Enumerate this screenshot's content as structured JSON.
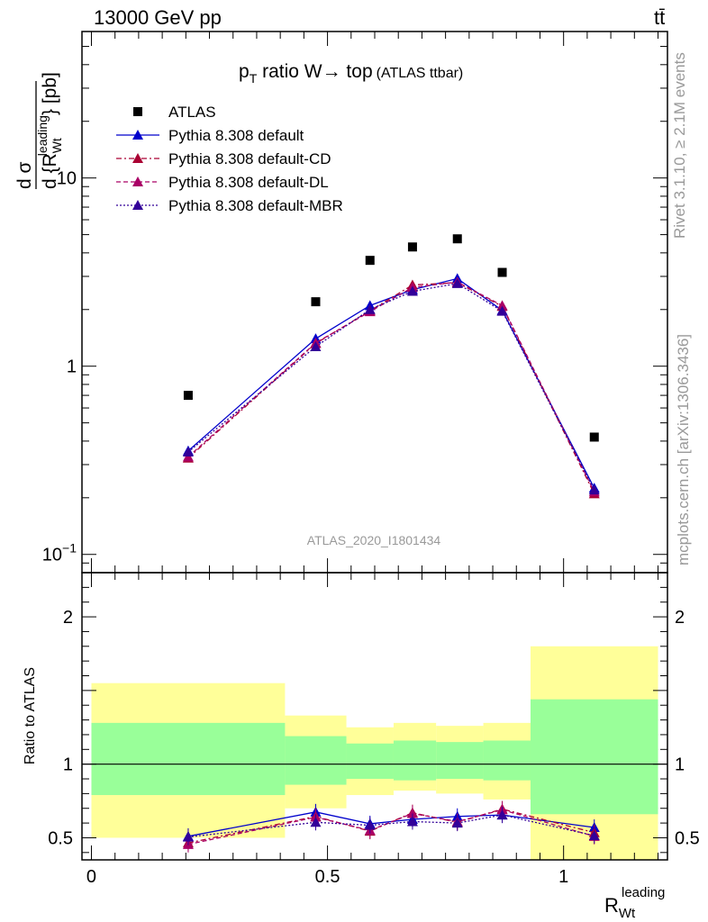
{
  "header": {
    "energy_label": "13000 GeV pp",
    "process_label": "tt̄"
  },
  "side": {
    "rivet_label": "Rivet 3.1.10, ≥ 2.1M events",
    "site_label": "mcplots.cern.ch [arXiv:1306.3436]"
  },
  "chart_data": [
    {
      "type": "line",
      "title_main": "p",
      "title_sub": "T",
      "title_rest": " ratio W→ top",
      "title_note": "(ATLAS ttbar)",
      "watermark": "ATLAS_2020_I1801434",
      "ylabel": "d σ / d {R_Wt^leading} [pb]",
      "yscale": "log",
      "ylim": [
        0.08,
        60
      ],
      "xlim": [
        -0.02,
        1.22
      ],
      "ytick_labels": [
        "10",
        "1",
        "10−1"
      ],
      "legend_position": "top-left",
      "series": [
        {
          "name": "ATLAS",
          "color": "#000000",
          "marker": "square",
          "x": [
            0.205,
            0.475,
            0.59,
            0.68,
            0.775,
            0.87,
            1.065
          ],
          "y": [
            0.7,
            2.2,
            3.65,
            4.3,
            4.75,
            3.15,
            0.42
          ]
        },
        {
          "name": "Pythia 8.308 default",
          "color": "#0000cc",
          "style": "solid",
          "marker": "triangle",
          "x": [
            0.205,
            0.475,
            0.59,
            0.68,
            0.775,
            0.87,
            1.065
          ],
          "y": [
            0.355,
            1.4,
            2.1,
            2.55,
            2.92,
            1.98,
            0.225
          ]
        },
        {
          "name": "Pythia 8.308 default-CD",
          "color": "#aa0033",
          "style": "dashdot",
          "marker": "triangle",
          "x": [
            0.205,
            0.475,
            0.59,
            0.68,
            0.775,
            0.87,
            1.065
          ],
          "y": [
            0.325,
            1.32,
            1.97,
            2.7,
            2.78,
            2.08,
            0.21
          ]
        },
        {
          "name": "Pythia 8.308 default-DL",
          "color": "#aa0066",
          "style": "dashed",
          "marker": "triangle",
          "x": [
            0.205,
            0.475,
            0.59,
            0.68,
            0.775,
            0.87,
            1.065
          ],
          "y": [
            0.33,
            1.33,
            1.95,
            2.62,
            2.8,
            2.1,
            0.215
          ]
        },
        {
          "name": "Pythia 8.308 default-MBR",
          "color": "#330099",
          "style": "dotted",
          "marker": "triangle",
          "x": [
            0.205,
            0.475,
            0.59,
            0.68,
            0.775,
            0.87,
            1.065
          ],
          "y": [
            0.35,
            1.27,
            2.0,
            2.5,
            2.75,
            1.96,
            0.22
          ]
        }
      ]
    },
    {
      "type": "line",
      "ylabel": "Ratio to ATLAS",
      "xlabel_main": "R",
      "xlabel_sub": "Wt",
      "xlabel_sup": "leading",
      "ylim": [
        0.35,
        2.3
      ],
      "xlim": [
        -0.02,
        1.22
      ],
      "ytick_labels": [
        "0.5",
        "1",
        "2"
      ],
      "xtick_labels": [
        "0",
        "0.5",
        "1"
      ],
      "bands": [
        {
          "x0": 0.0,
          "x1": 0.41,
          "inner": [
            0.79,
            1.28
          ],
          "outer": [
            0.5,
            1.55
          ]
        },
        {
          "x0": 0.41,
          "x1": 0.54,
          "inner": [
            0.86,
            1.19
          ],
          "outer": [
            0.7,
            1.33
          ]
        },
        {
          "x0": 0.54,
          "x1": 0.64,
          "inner": [
            0.9,
            1.14
          ],
          "outer": [
            0.79,
            1.25
          ]
        },
        {
          "x0": 0.64,
          "x1": 0.73,
          "inner": [
            0.89,
            1.16
          ],
          "outer": [
            0.82,
            1.28
          ]
        },
        {
          "x0": 0.73,
          "x1": 0.83,
          "inner": [
            0.9,
            1.15
          ],
          "outer": [
            0.8,
            1.26
          ]
        },
        {
          "x0": 0.83,
          "x1": 0.93,
          "inner": [
            0.89,
            1.16
          ],
          "outer": [
            0.76,
            1.28
          ]
        },
        {
          "x0": 0.93,
          "x1": 1.2,
          "inner": [
            0.66,
            1.44
          ],
          "outer": [
            0.35,
            1.8
          ]
        }
      ],
      "series": [
        {
          "name": "Pythia 8.308 default",
          "color": "#0000cc",
          "style": "solid",
          "x": [
            0.205,
            0.475,
            0.59,
            0.68,
            0.775,
            0.87,
            1.065
          ],
          "y": [
            0.51,
            0.675,
            0.595,
            0.625,
            0.645,
            0.655,
            0.57
          ]
        },
        {
          "name": "Pythia 8.308 default-CD",
          "color": "#aa0033",
          "style": "dashdot",
          "x": [
            0.205,
            0.475,
            0.59,
            0.68,
            0.775,
            0.87,
            1.065
          ],
          "y": [
            0.465,
            0.645,
            0.545,
            0.67,
            0.605,
            0.695,
            0.535
          ]
        },
        {
          "name": "Pythia 8.308 default-DL",
          "color": "#aa0066",
          "style": "dashed",
          "x": [
            0.205,
            0.475,
            0.59,
            0.68,
            0.775,
            0.87,
            1.065
          ],
          "y": [
            0.455,
            0.64,
            0.55,
            0.665,
            0.61,
            0.69,
            0.51
          ]
        },
        {
          "name": "Pythia 8.308 default-MBR",
          "color": "#330099",
          "style": "dotted",
          "x": [
            0.205,
            0.475,
            0.59,
            0.68,
            0.775,
            0.87,
            1.065
          ],
          "y": [
            0.505,
            0.605,
            0.585,
            0.61,
            0.6,
            0.655,
            0.515
          ]
        }
      ]
    }
  ]
}
